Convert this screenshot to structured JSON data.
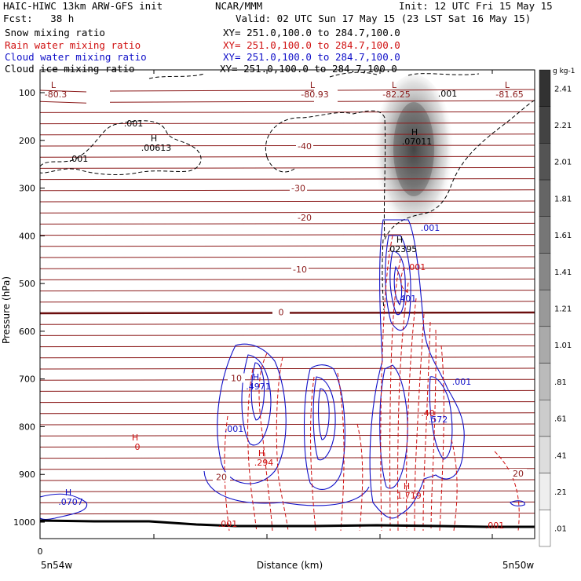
{
  "header": {
    "line1_left": "HAIC-HIWC 13km ARW-GFS init",
    "line1_mid": "NCAR/MMM",
    "line1_right": "Init: 12 UTC Fri 15 May 15",
    "line2_left": "Fcst:   38 h",
    "line2_right": "Valid: 02 UTC Sun 17 May 15 (23 LST Sat 16 May 15)",
    "fields": [
      {
        "name": "Snow mixing ratio",
        "xy": "XY= 251.0,100.0 to 284.7,100.0",
        "color": "#000000"
      },
      {
        "name": "Rain water mixing ratio",
        "xy": "XY= 251.0,100.0 to 284.7,100.0",
        "color": "#d01010"
      },
      {
        "name": "Cloud water mixing ratio",
        "xy": "XY= 251.0,100.0 to 284.7,100.0",
        "color": "#1010c8"
      },
      {
        "name": "Cloud ice mixing ratio",
        "xy": "XY= 251.0,100.0 to 284.7,100.0",
        "color": "#000000"
      }
    ]
  },
  "chart_data": {
    "type": "heatmap",
    "ylabel": "Pressure (hPa)",
    "xlabel": "Distance (km)",
    "y_ticks": [
      100,
      200,
      300,
      400,
      500,
      600,
      700,
      800,
      900,
      1000
    ],
    "ylim": [
      60,
      1050
    ],
    "x_tick_labels": {
      "left": "0",
      "start": "5n54w",
      "end": "5n50w"
    },
    "colorbar": {
      "unit": "g kg-1",
      "labels": [
        "2.41",
        "2.21",
        "2.01",
        "1.81",
        "1.61",
        "1.41",
        "1.21",
        "1.01",
        ".81",
        ".61",
        ".41",
        ".21",
        ".01"
      ]
    },
    "temperature_labels": [
      {
        "value": "-40",
        "p": 212
      },
      {
        "value": "-30",
        "p": 300
      },
      {
        "value": "-20",
        "p": 362
      },
      {
        "value": "-10",
        "p": 470
      },
      {
        "value": "0",
        "p": 560
      },
      {
        "value": "10",
        "p": 698
      },
      {
        "value": "20",
        "p": 905
      },
      {
        "value": "20",
        "p": 898
      }
    ],
    "annotations": [
      {
        "letter": "L",
        "value": "-80.3",
        "p": 100,
        "color": "#8b1a1a"
      },
      {
        "letter": "L",
        "value": "-80.93",
        "p": 100,
        "color": "#8b1a1a"
      },
      {
        "letter": "L",
        "value": "-82.25",
        "p": 100,
        "color": "#8b1a1a"
      },
      {
        "letter": "L",
        "value": "-81.65",
        "p": 100,
        "color": "#8b1a1a"
      },
      {
        "letter": "H",
        "value": ".00613",
        "p": 212,
        "color": "#000000"
      },
      {
        "letter": "H",
        "value": ".07011",
        "p": 195,
        "color": "#000000"
      },
      {
        "letter": "H",
        "value": ".02395",
        "p": 450,
        "color": "#000000"
      },
      {
        "letter": "H",
        "value": ".4971",
        "p": 712,
        "color": "#1010c8"
      },
      {
        "letter": "H",
        "value": "0",
        "p": 840,
        "color": "#d01010"
      },
      {
        "letter": "H",
        "value": ".294",
        "p": 885,
        "color": "#d01010"
      },
      {
        "letter": "H",
        "value": "1.719",
        "p": 955,
        "color": "#d01010"
      },
      {
        "letter": "H",
        "value": ".0707",
        "p": 982,
        "color": "#1010c8"
      }
    ],
    "contour_labels": [
      {
        "value": ".001",
        "color": "#000000"
      },
      {
        "value": ".001",
        "color": "#000000"
      },
      {
        "value": ".001",
        "color": "#000000"
      },
      {
        "value": ".001",
        "color": "#1010c8"
      },
      {
        "value": ".001",
        "color": "#d01010"
      },
      {
        "value": ".401",
        "color": "#1010c8"
      },
      {
        "value": ".001",
        "color": "#1010c8"
      },
      {
        "value": ".001",
        "color": "#1010c8"
      },
      {
        "value": ".572",
        "color": "#1010c8"
      },
      {
        "value": ".40",
        "color": "#d01010"
      },
      {
        "value": ".001",
        "color": "#d01010"
      },
      {
        "value": ".001",
        "color": "#d01010"
      }
    ]
  }
}
